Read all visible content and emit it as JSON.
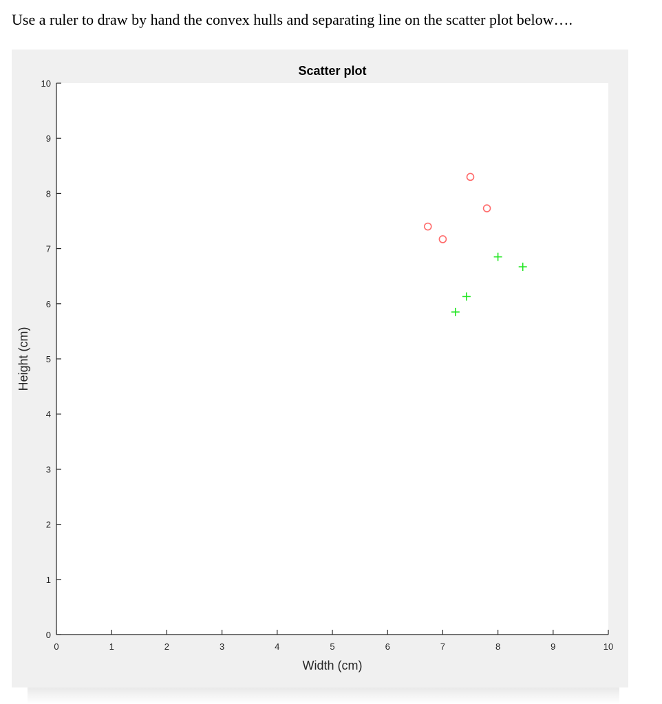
{
  "prompt_text": "Use a ruler to draw by hand the convex hulls and separating line on the scatter plot below….",
  "chart_data": {
    "type": "scatter",
    "title": "Scatter plot",
    "xlabel": "Width (cm)",
    "ylabel": "Height (cm)",
    "xlim": [
      0,
      10
    ],
    "ylim": [
      0,
      10
    ],
    "xticks": [
      "0",
      "1",
      "2",
      "3",
      "4",
      "5",
      "6",
      "7",
      "8",
      "9",
      "10"
    ],
    "yticks": [
      "0",
      "1",
      "2",
      "3",
      "4",
      "5",
      "6",
      "7",
      "8",
      "9",
      "10"
    ],
    "grid": false,
    "series": [
      {
        "marker": "circle",
        "color": "#ff6b6b",
        "points": [
          [
            7.5,
            8.3
          ],
          [
            7.8,
            7.73
          ],
          [
            6.73,
            7.4
          ],
          [
            7.0,
            7.17
          ]
        ]
      },
      {
        "marker": "plus",
        "color": "#22e622",
        "points": [
          [
            8.0,
            6.85
          ],
          [
            8.45,
            6.67
          ],
          [
            7.43,
            6.13
          ],
          [
            7.23,
            5.85
          ]
        ]
      }
    ]
  }
}
